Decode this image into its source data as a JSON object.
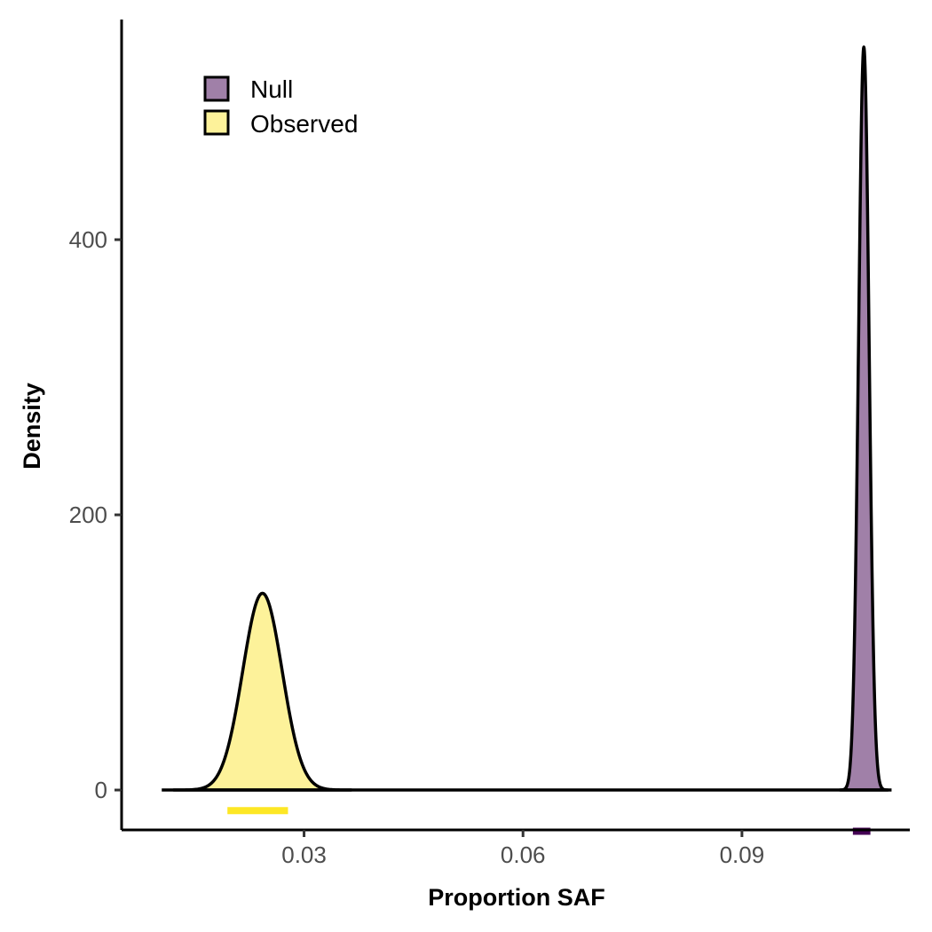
{
  "chart_data": {
    "type": "area",
    "title": "",
    "xlabel": "Proportion SAF",
    "ylabel": "Density",
    "xlim": [
      0.005,
      0.113
    ],
    "ylim": [
      -29,
      560
    ],
    "x_ticks": [
      0.03,
      0.06,
      0.09
    ],
    "x_tick_labels": [
      "0.03",
      "0.06",
      "0.09"
    ],
    "y_ticks": [
      0,
      200,
      400
    ],
    "y_tick_labels": [
      "0",
      "200",
      "400"
    ],
    "grid": false,
    "legend_position": "top-left",
    "baseline_range": [
      0.0105,
      0.1105
    ],
    "series": [
      {
        "name": "Null",
        "color": "#A080A8",
        "interval_color": "#440154",
        "mean": 0.1067,
        "sd": 0.00072,
        "peak_density": 540,
        "interval": [
          0.1052,
          0.1076
        ],
        "interval_y": -30
      },
      {
        "name": "Observed",
        "color": "#FDF29A",
        "interval_color": "#FDE725",
        "mean": 0.0243,
        "sd": 0.0027,
        "peak_density": 143,
        "interval": [
          0.0195,
          0.0278
        ],
        "interval_y": -15
      }
    ]
  }
}
